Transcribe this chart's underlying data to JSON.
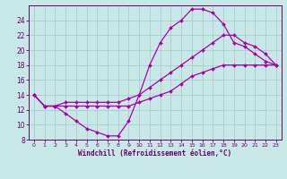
{
  "xlabel": "Windchill (Refroidissement éolien,°C)",
  "ylabel": "",
  "bg_color": "#c8e8e8",
  "grid_color": "#aacccc",
  "line_color": "#aa00aa",
  "marker": "D",
  "markersize": 2.0,
  "linewidth": 0.9,
  "xlim": [
    -0.5,
    23.5
  ],
  "ylim": [
    8,
    26
  ],
  "xticks": [
    0,
    1,
    2,
    3,
    4,
    5,
    6,
    7,
    8,
    9,
    10,
    11,
    12,
    13,
    14,
    15,
    16,
    17,
    18,
    19,
    20,
    21,
    22,
    23
  ],
  "yticks": [
    8,
    10,
    12,
    14,
    16,
    18,
    20,
    22,
    24
  ],
  "line1_x": [
    0,
    1,
    2,
    3,
    4,
    5,
    6,
    7,
    8,
    9,
    10,
    11,
    12,
    13,
    14,
    15,
    16,
    17,
    18,
    19,
    20,
    21,
    22,
    23
  ],
  "line1_y": [
    14,
    12.5,
    12.5,
    11.5,
    10.5,
    9.5,
    9,
    8.5,
    8.5,
    10.5,
    14,
    18,
    21,
    23,
    24,
    25.5,
    25.5,
    25,
    23.5,
    21,
    20.5,
    19.5,
    18.5,
    18
  ],
  "line2_x": [
    0,
    1,
    2,
    3,
    4,
    5,
    6,
    7,
    8,
    9,
    10,
    11,
    12,
    13,
    14,
    15,
    16,
    17,
    18,
    19,
    20,
    21,
    22,
    23
  ],
  "line2_y": [
    14,
    12.5,
    12.5,
    13,
    13,
    13,
    13,
    13,
    13,
    13.5,
    14,
    15,
    16,
    17,
    18,
    19,
    20,
    21,
    22,
    22,
    21,
    20.5,
    19.5,
    18
  ],
  "line3_x": [
    0,
    1,
    2,
    3,
    4,
    5,
    6,
    7,
    8,
    9,
    10,
    11,
    12,
    13,
    14,
    15,
    16,
    17,
    18,
    19,
    20,
    21,
    22,
    23
  ],
  "line3_y": [
    14,
    12.5,
    12.5,
    12.5,
    12.5,
    12.5,
    12.5,
    12.5,
    12.5,
    12.5,
    13,
    13.5,
    14,
    14.5,
    15.5,
    16.5,
    17,
    17.5,
    18,
    18,
    18,
    18,
    18,
    18
  ],
  "tick_color": "#660066",
  "xlabel_fontsize": 5.5,
  "xlabel_fontweight": "bold",
  "xtick_fontsize": 4.5,
  "ytick_fontsize": 5.5
}
